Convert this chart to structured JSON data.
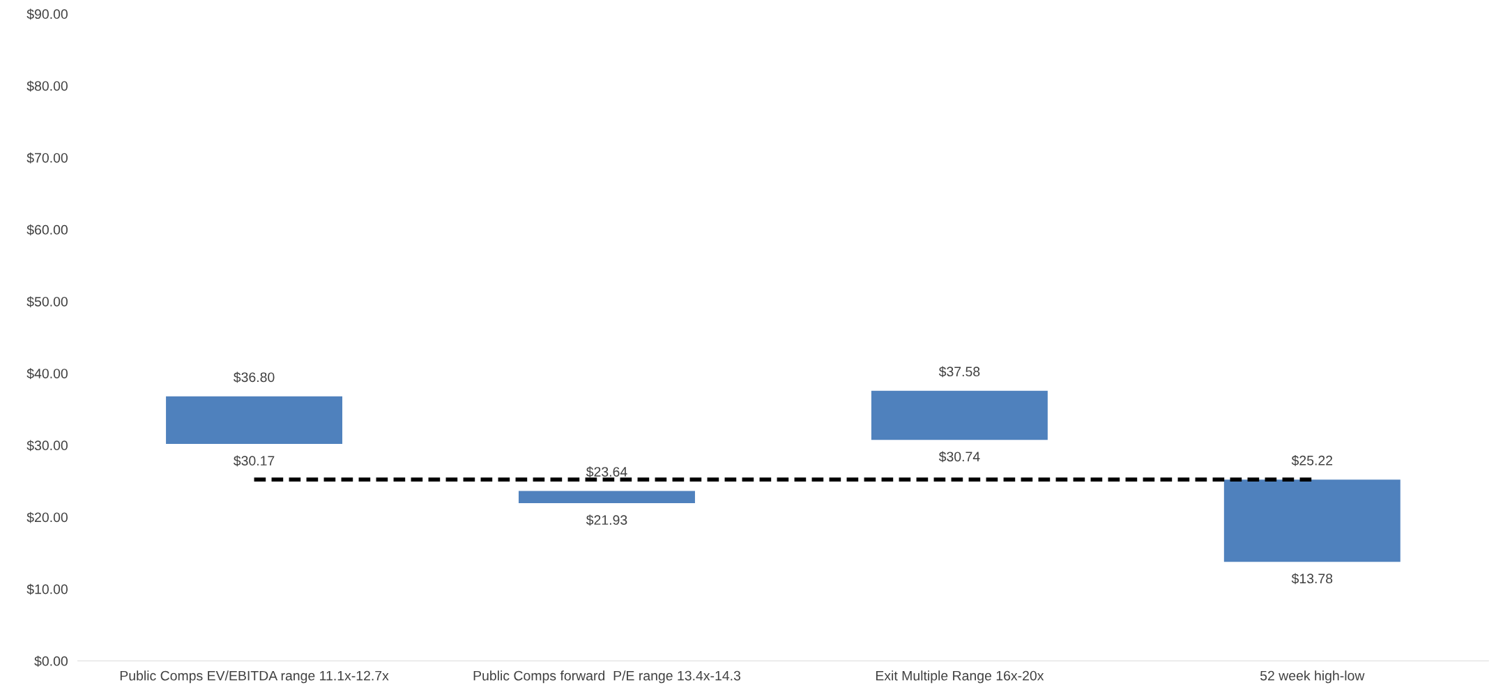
{
  "chart_data": {
    "type": "bar",
    "categories": [
      "Public Comps EV/EBITDA range 11.1x-12.7x",
      "Public Comps forward  P/E range 13.4x-14.3",
      "Exit Multiple Range 16x-20x",
      "52 week high-low"
    ],
    "series": [
      {
        "color": "#4f81bd",
        "base": [
          30.17,
          21.93,
          30.74,
          13.78
        ],
        "values": [
          6.63,
          1.71,
          6.84,
          11.44
        ]
      },
      {
        "type": "line",
        "color": "#000000",
        "line_style": "dashed",
        "marker": "none",
        "values": [
          25.22,
          25.22,
          25.22,
          25.22
        ]
      }
    ],
    "ylim": [
      0,
      90
    ],
    "yticks": [
      {
        "value": 0,
        "label": "$0.00"
      },
      {
        "value": 10,
        "label": "$10.00"
      },
      {
        "value": 20,
        "label": "$20.00"
      },
      {
        "value": 30,
        "label": "$30.00"
      },
      {
        "value": 40,
        "label": "$40.00"
      },
      {
        "value": 50,
        "label": "$50.00"
      },
      {
        "value": 60,
        "label": "$60.00"
      },
      {
        "value": 70,
        "label": "$70.00"
      },
      {
        "value": 80,
        "label": "$80.00"
      },
      {
        "value": 90,
        "label": "$90.00"
      }
    ],
    "grid": false,
    "annotations": [
      {
        "text": "$36.80",
        "x": "Public Comps EV/EBITDA range 11.1x-12.7x",
        "y": 36.8
      },
      {
        "text": "$30.17",
        "x": "Public Comps EV/EBITDA range 11.1x-12.7x",
        "y": 30.17
      },
      {
        "text": "$23.64",
        "x": "Public Comps forward  P/E range 13.4x-14.3",
        "y": 23.64
      },
      {
        "text": "$21.93",
        "x": "Public Comps forward  P/E range 13.4x-14.3",
        "y": 21.93
      },
      {
        "text": "$37.58",
        "x": "Exit Multiple Range 16x-20x",
        "y": 37.58
      },
      {
        "text": "$30.74",
        "x": "Exit Multiple Range 16x-20x",
        "y": 30.74
      },
      {
        "text": "$25.22",
        "x": "52 week high-low",
        "y": 25.22
      },
      {
        "text": "$13.78",
        "x": "52 week high-low",
        "y": 13.78
      }
    ]
  }
}
